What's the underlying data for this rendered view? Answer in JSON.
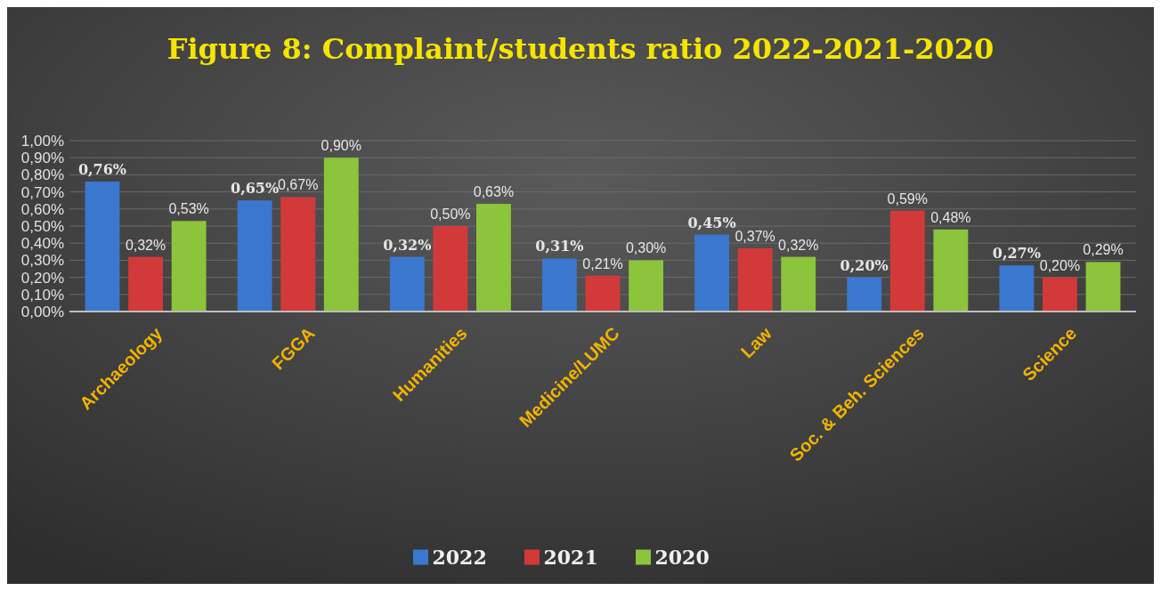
{
  "chart_data": {
    "type": "bar",
    "title": "Figure 8: Complaint/students ratio 2022-2021-2020",
    "categories": [
      "Archaeology",
      "FGGA",
      "Humanities",
      "Medicine/LUMC",
      "Law",
      "Soc. & Beh. Sciences",
      "Science"
    ],
    "series": [
      {
        "name": "2022",
        "color": "#3a78d0",
        "values": [
          0.76,
          0.65,
          0.32,
          0.31,
          0.45,
          0.2,
          0.27
        ],
        "value_labels": [
          "0,76%",
          "0,65%",
          "0,32%",
          "0,31%",
          "0,45%",
          "0,20%",
          "0,27%"
        ]
      },
      {
        "name": "2021",
        "color": "#d23a3a",
        "values": [
          0.32,
          0.67,
          0.5,
          0.21,
          0.37,
          0.59,
          0.2
        ],
        "value_labels": [
          "0,32%",
          "0,67%",
          "0,50%",
          "0,21%",
          "0,37%",
          "0,59%",
          "0,20%"
        ]
      },
      {
        "name": "2020",
        "color": "#8cc43c",
        "values": [
          0.53,
          0.9,
          0.63,
          0.3,
          0.32,
          0.48,
          0.29
        ],
        "value_labels": [
          "0,53%",
          "0,90%",
          "0,63%",
          "0,30%",
          "0,32%",
          "0,48%",
          "0,29%"
        ]
      }
    ],
    "ylim": [
      0,
      1
    ],
    "yticks": [
      {
        "value": 0,
        "label": "0,00%"
      },
      {
        "value": 0.1,
        "label": "0,10%"
      },
      {
        "value": 0.2,
        "label": "0,20%"
      },
      {
        "value": 0.3,
        "label": "0,30%"
      },
      {
        "value": 0.4,
        "label": "0,40%"
      },
      {
        "value": 0.5,
        "label": "0,50%"
      },
      {
        "value": 0.6,
        "label": "0,60%"
      },
      {
        "value": 0.7,
        "label": "0,70%"
      },
      {
        "value": 0.8,
        "label": "0,80%"
      },
      {
        "value": 0.9,
        "label": "0,90%"
      },
      {
        "value": 1,
        "label": "1,00%"
      }
    ],
    "grid": "y",
    "legend": "bottom"
  }
}
